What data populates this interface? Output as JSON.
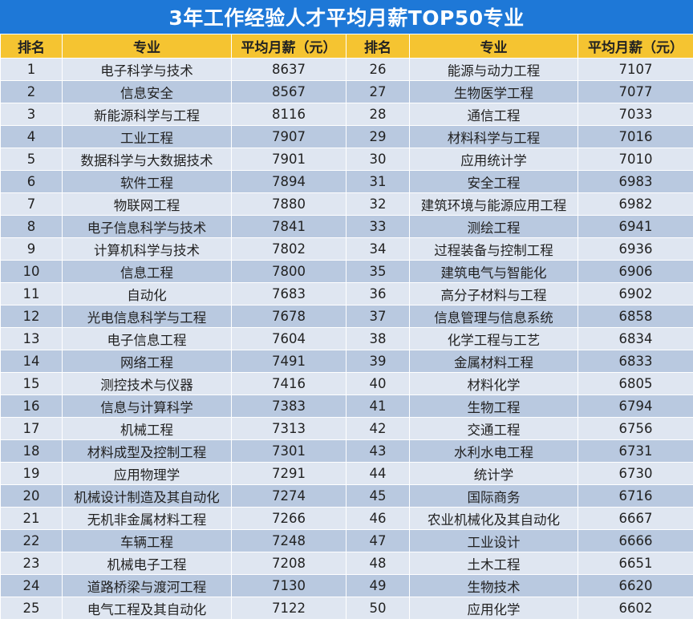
{
  "title": "3年工作经验人才平均月薪TOP50专业",
  "headers": {
    "rank": "排名",
    "major": "专业",
    "salary": "平均月薪（元）"
  },
  "left_rows": [
    {
      "rank": "1",
      "major": "电子科学与技术",
      "salary": "8637"
    },
    {
      "rank": "2",
      "major": "信息安全",
      "salary": "8567"
    },
    {
      "rank": "3",
      "major": "新能源科学与工程",
      "salary": "8116"
    },
    {
      "rank": "4",
      "major": "工业工程",
      "salary": "7907"
    },
    {
      "rank": "5",
      "major": "数据科学与大数据技术",
      "salary": "7901"
    },
    {
      "rank": "6",
      "major": "软件工程",
      "salary": "7894"
    },
    {
      "rank": "7",
      "major": "物联网工程",
      "salary": "7880"
    },
    {
      "rank": "8",
      "major": "电子信息科学与技术",
      "salary": "7841"
    },
    {
      "rank": "9",
      "major": "计算机科学与技术",
      "salary": "7802"
    },
    {
      "rank": "10",
      "major": "信息工程",
      "salary": "7800"
    },
    {
      "rank": "11",
      "major": "自动化",
      "salary": "7683"
    },
    {
      "rank": "12",
      "major": "光电信息科学与工程",
      "salary": "7678"
    },
    {
      "rank": "13",
      "major": "电子信息工程",
      "salary": "7604"
    },
    {
      "rank": "14",
      "major": "网络工程",
      "salary": "7491"
    },
    {
      "rank": "15",
      "major": "测控技术与仪器",
      "salary": "7416"
    },
    {
      "rank": "16",
      "major": "信息与计算科学",
      "salary": "7383"
    },
    {
      "rank": "17",
      "major": "机械工程",
      "salary": "7313"
    },
    {
      "rank": "18",
      "major": "材料成型及控制工程",
      "salary": "7301"
    },
    {
      "rank": "19",
      "major": "应用物理学",
      "salary": "7291"
    },
    {
      "rank": "20",
      "major": "机械设计制造及其自动化",
      "salary": "7274"
    },
    {
      "rank": "21",
      "major": "无机非金属材料工程",
      "salary": "7266"
    },
    {
      "rank": "22",
      "major": "车辆工程",
      "salary": "7248"
    },
    {
      "rank": "23",
      "major": "机械电子工程",
      "salary": "7208"
    },
    {
      "rank": "24",
      "major": "道路桥梁与渡河工程",
      "salary": "7130"
    },
    {
      "rank": "25",
      "major": "电气工程及其自动化",
      "salary": "7122"
    }
  ],
  "right_rows": [
    {
      "rank": "26",
      "major": "能源与动力工程",
      "salary": "7107"
    },
    {
      "rank": "27",
      "major": "生物医学工程",
      "salary": "7077"
    },
    {
      "rank": "28",
      "major": "通信工程",
      "salary": "7033"
    },
    {
      "rank": "29",
      "major": "材料科学与工程",
      "salary": "7016"
    },
    {
      "rank": "30",
      "major": "应用统计学",
      "salary": "7010"
    },
    {
      "rank": "31",
      "major": "安全工程",
      "salary": "6983"
    },
    {
      "rank": "32",
      "major": "建筑环境与能源应用工程",
      "salary": "6982"
    },
    {
      "rank": "33",
      "major": "测绘工程",
      "salary": "6941"
    },
    {
      "rank": "34",
      "major": "过程装备与控制工程",
      "salary": "6936"
    },
    {
      "rank": "35",
      "major": "建筑电气与智能化",
      "salary": "6906"
    },
    {
      "rank": "36",
      "major": "高分子材料与工程",
      "salary": "6902"
    },
    {
      "rank": "37",
      "major": "信息管理与信息系统",
      "salary": "6858"
    },
    {
      "rank": "38",
      "major": "化学工程与工艺",
      "salary": "6834"
    },
    {
      "rank": "39",
      "major": "金属材料工程",
      "salary": "6833"
    },
    {
      "rank": "40",
      "major": "材料化学",
      "salary": "6805"
    },
    {
      "rank": "41",
      "major": "生物工程",
      "salary": "6794"
    },
    {
      "rank": "42",
      "major": "交通工程",
      "salary": "6756"
    },
    {
      "rank": "43",
      "major": "水利水电工程",
      "salary": "6731"
    },
    {
      "rank": "44",
      "major": "统计学",
      "salary": "6730"
    },
    {
      "rank": "45",
      "major": "国际商务",
      "salary": "6716"
    },
    {
      "rank": "46",
      "major": "农业机械化及其自动化",
      "salary": "6667"
    },
    {
      "rank": "47",
      "major": "工业设计",
      "salary": "6666"
    },
    {
      "rank": "48",
      "major": "土木工程",
      "salary": "6651"
    },
    {
      "rank": "49",
      "major": "生物技术",
      "salary": "6620"
    },
    {
      "rank": "50",
      "major": "应用化学",
      "salary": "6602"
    }
  ],
  "colors": {
    "title_background": "#1e78d7",
    "title_text": "#ffffff",
    "header_background": "#f5c431",
    "row_light": "#dfe6f1",
    "row_dark": "#b9c9e0"
  }
}
